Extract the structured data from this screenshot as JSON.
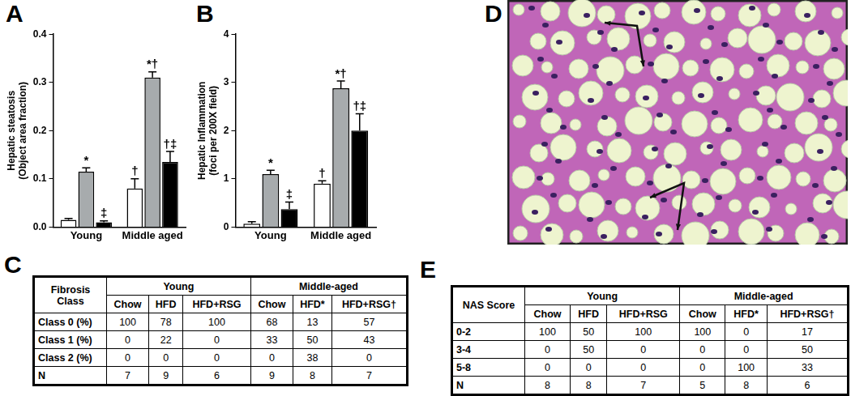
{
  "chart_data": [
    {
      "type": "bar",
      "title": "A",
      "y_label": [
        "Hepatic steatosis",
        "(Object area fraction)"
      ],
      "categories": [
        "Young",
        "Middle aged"
      ],
      "series": [
        {
          "color": "#ffffff",
          "values": [
            0.015,
            0.08
          ],
          "errors": [
            0.003,
            0.02
          ],
          "significance": [
            null,
            "†"
          ]
        },
        {
          "color": "#a7abad",
          "values": [
            0.115,
            0.31
          ],
          "errors": [
            0.008,
            0.012
          ],
          "significance": [
            "*",
            "*†"
          ]
        },
        {
          "color": "#000000",
          "values": [
            0.01,
            0.135
          ],
          "errors": [
            0.003,
            0.022
          ],
          "significance": [
            "‡",
            "†‡"
          ]
        }
      ],
      "ylim": [
        0,
        0.4
      ],
      "yticks": [
        {
          "value": 0,
          "label": "0.0"
        },
        0.1,
        0.2,
        0.3,
        0.4
      ],
      "grid": false,
      "legend": null
    },
    {
      "type": "bar",
      "title": "B",
      "y_label": [
        "Hepatic Inflammation",
        "(foci per 200X field)"
      ],
      "categories": [
        "Young",
        "Middle aged"
      ],
      "series": [
        {
          "color": "#ffffff",
          "values": [
            0.07,
            0.9
          ],
          "errors": [
            0.04,
            0.06
          ],
          "significance": [
            null,
            "†"
          ]
        },
        {
          "color": "#a7abad",
          "values": [
            1.1,
            2.88
          ],
          "errors": [
            0.08,
            0.15
          ],
          "significance": [
            "*",
            "*†"
          ]
        },
        {
          "color": "#000000",
          "values": [
            0.37,
            2.0
          ],
          "errors": [
            0.15,
            0.35
          ],
          "significance": [
            "‡",
            "†‡"
          ]
        }
      ],
      "ylim": [
        0,
        4
      ],
      "yticks": [
        0,
        1,
        2,
        3,
        4
      ],
      "grid": false,
      "legend": null
    }
  ],
  "tables": [
    {
      "label": "C",
      "row_header": "Fibrosis Class",
      "groups": [
        {
          "name": "Young",
          "columns": [
            "Chow",
            "HFD",
            "HFD+RSG"
          ]
        },
        {
          "name": "Middle-aged",
          "columns": [
            "Chow",
            "HFD*",
            "HFD+RSG†"
          ]
        }
      ],
      "rows": [
        {
          "name": "Class 0 (%)",
          "values": [
            100,
            78,
            100,
            68,
            13,
            57
          ]
        },
        {
          "name": "Class 1 (%)",
          "values": [
            0,
            22,
            0,
            33,
            50,
            43
          ]
        },
        {
          "name": "Class 2 (%)",
          "values": [
            0,
            0,
            0,
            0,
            38,
            0
          ]
        },
        {
          "name": "N",
          "values": [
            7,
            9,
            6,
            9,
            8,
            7
          ]
        }
      ]
    },
    {
      "label": "E",
      "row_header": "NAS Score",
      "groups": [
        {
          "name": "Young",
          "columns": [
            "Chow",
            "HFD",
            "HFD+RSG"
          ]
        },
        {
          "name": "Middle-aged",
          "columns": [
            "Chow",
            "HFD*",
            "HFD+RSG†"
          ]
        }
      ],
      "rows": [
        {
          "name": "0-2",
          "values": [
            100,
            50,
            100,
            100,
            0,
            17
          ]
        },
        {
          "name": "3-4",
          "values": [
            0,
            50,
            0,
            0,
            0,
            50
          ]
        },
        {
          "name": "5-8",
          "values": [
            0,
            0,
            0,
            0,
            100,
            33
          ]
        },
        {
          "name": "N",
          "values": [
            8,
            8,
            7,
            5,
            8,
            6
          ]
        }
      ]
    }
  ],
  "image": {
    "label": "D"
  }
}
